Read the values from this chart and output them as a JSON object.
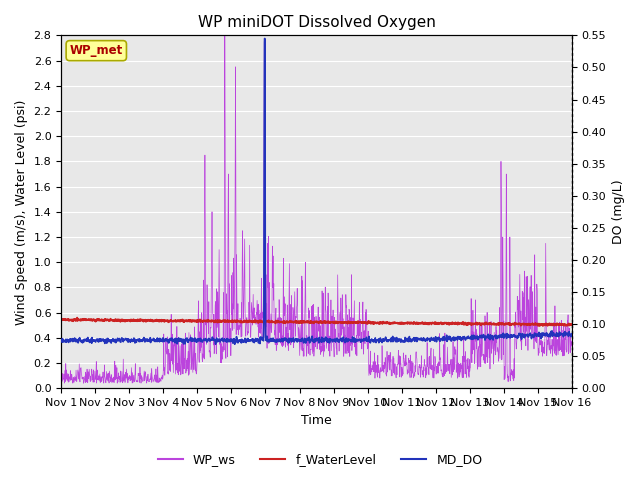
{
  "title": "WP miniDOT Dissolved Oxygen",
  "xlabel": "Time",
  "ylabel_left": "Wind Speed (m/s), Water Level (psi)",
  "ylabel_right": "DO (mg/L)",
  "ylim_left": [
    0.0,
    2.8
  ],
  "ylim_right": [
    0.0,
    0.55
  ],
  "yticks_left": [
    0.0,
    0.2,
    0.4,
    0.6,
    0.8,
    1.0,
    1.2,
    1.4,
    1.6,
    1.8,
    2.0,
    2.2,
    2.4,
    2.6,
    2.8
  ],
  "yticks_right": [
    0.0,
    0.05,
    0.1,
    0.15,
    0.2,
    0.25,
    0.3,
    0.35,
    0.4,
    0.45,
    0.5,
    0.55
  ],
  "xtick_labels": [
    "Nov 1",
    "Nov 2",
    "Nov 3",
    "Nov 4",
    "Nov 5",
    "Nov 6",
    "Nov 7",
    "Nov 8",
    "Nov 9",
    "Nov 10",
    "Nov 11",
    "Nov 12",
    "Nov 13",
    "Nov 14",
    "Nov 15",
    "Nov 16"
  ],
  "num_days": 15,
  "color_ws": "#BB44DD",
  "color_wl": "#CC2222",
  "color_do": "#2233BB",
  "background_color": "#E8E8E8",
  "annotation_text": "WP_met",
  "annotation_box_color": "#FFFF99",
  "annotation_box_edge": "#AAAA00",
  "annotation_text_color": "#AA0000",
  "legend_entries": [
    "WP_ws",
    "f_WaterLevel",
    "MD_DO"
  ],
  "title_fontsize": 11,
  "label_fontsize": 9,
  "tick_fontsize": 8
}
